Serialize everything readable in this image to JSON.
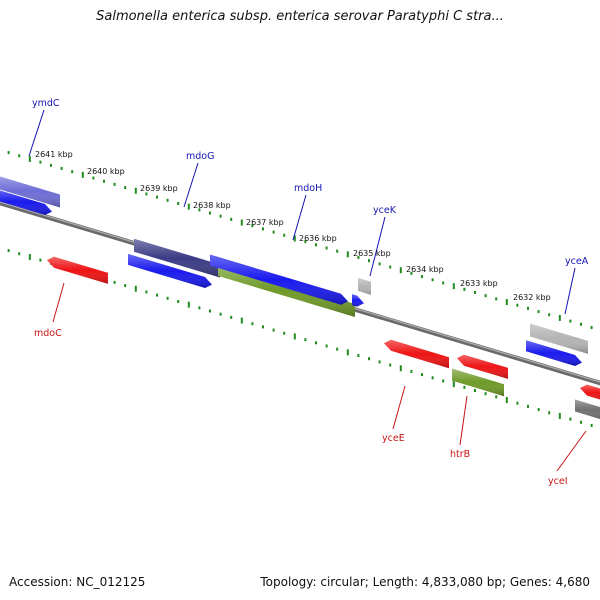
{
  "title": "Salmonella enterica subsp. enterica serovar Paratyphi C stra...",
  "accession": "Accession: NC_012125",
  "topology": "Topology: circular; Length: 4,833,080 bp; Genes: 4,680",
  "colors": {
    "backbone": "#8a8a8a",
    "tick": "#1e8c1e",
    "label_top": "#1414b4",
    "label_bottom": "#c81414",
    "gene_blue": "#1a1aee",
    "gene_red": "#ee1414",
    "gene_green": "#6f9a28",
    "gene_purple": "#6e6ed6",
    "gene_dark_purple": "#3b3b85",
    "gene_gray": "#b4b4b4",
    "gene_dark_gray": "#707070"
  },
  "kbp_labels": [
    "2641 kbp",
    "2640 kbp",
    "2639 kbp",
    "2638 kbp",
    "2637 kbp",
    "2636 kbp",
    "2635 kbp",
    "2634 kbp",
    "2633 kbp",
    "2632 kbp"
  ],
  "gene_labels_top": [
    "ymdC",
    "mdoG",
    "mdoH",
    "yceK",
    "yceA"
  ],
  "gene_labels_bottom": [
    "mdoC",
    "yceE",
    "htrB",
    "yceI"
  ]
}
